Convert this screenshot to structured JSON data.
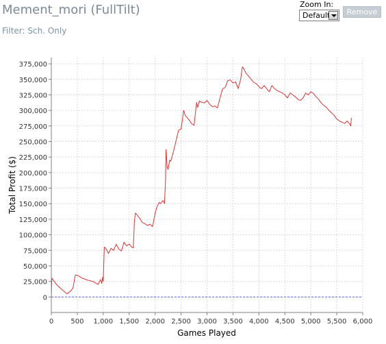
{
  "header": {
    "title": "Mement_mori (FullTilt)",
    "filter": "Filter: Sch. Only"
  },
  "controls": {
    "zoom_label": "Zoom In:",
    "zoom_value": "Default",
    "remove_label": "Remove"
  },
  "colors": {
    "line": "#e03030",
    "zero_line": "#6060e0",
    "grid": "#d9d9d9",
    "title": "#7a8a99",
    "filter": "#7a94a6"
  },
  "chart_data": {
    "type": "line",
    "title": "",
    "xlabel": "Games Played",
    "ylabel": "Total Profit ($)",
    "xlim": [
      0,
      6000
    ],
    "ylim": [
      -25000,
      385000
    ],
    "grid": true,
    "x_ticks": [
      0,
      500,
      1000,
      1500,
      2000,
      2500,
      3000,
      3500,
      4000,
      4500,
      5000,
      5500,
      6000
    ],
    "x_tick_labels": [
      "0",
      "500",
      "1,000",
      "1,500",
      "2,000",
      "2,500",
      "3,000",
      "3,500",
      "4,000",
      "4,500",
      "5,000",
      "5,500",
      "6,000"
    ],
    "y_ticks": [
      0,
      25000,
      50000,
      75000,
      100000,
      125000,
      150000,
      175000,
      200000,
      225000,
      250000,
      275000,
      300000,
      325000,
      350000,
      375000
    ],
    "y_tick_labels": [
      "0",
      "25,000",
      "50,000",
      "75,000",
      "100,000",
      "125,000",
      "150,000",
      "175,000",
      "200,000",
      "225,000",
      "250,000",
      "275,000",
      "300,000",
      "325,000",
      "350,000",
      "375,000"
    ],
    "baseline": 0,
    "series": [
      {
        "x": [
          0,
          10,
          30,
          100,
          200,
          300,
          380,
          420,
          440,
          460,
          500,
          600,
          700,
          800,
          900,
          950,
          970,
          990,
          1000,
          1020,
          1050,
          1100,
          1150,
          1200,
          1250,
          1300,
          1350,
          1400,
          1450,
          1500,
          1550,
          1580,
          1600,
          1620,
          1650,
          1700,
          1750,
          1800,
          1850,
          1900,
          1950,
          2000,
          2030,
          2050,
          2080,
          2100,
          2150,
          2180,
          2200,
          2210,
          2220,
          2230,
          2250,
          2280,
          2300,
          2350,
          2400,
          2450,
          2500,
          2550,
          2580,
          2600,
          2650,
          2700,
          2750,
          2800,
          2820,
          2850,
          2900,
          2950,
          3000,
          3050,
          3100,
          3150,
          3200,
          3250,
          3300,
          3350,
          3400,
          3450,
          3500,
          3550,
          3600,
          3650,
          3680,
          3700,
          3750,
          3800,
          3850,
          3900,
          3950,
          4000,
          4050,
          4100,
          4150,
          4200,
          4250,
          4300,
          4350,
          4400,
          4450,
          4500,
          4550,
          4600,
          4650,
          4700,
          4750,
          4800,
          4850,
          4900,
          4950,
          5000,
          5050,
          5100,
          5150,
          5200,
          5250,
          5300,
          5350,
          5400,
          5450,
          5500,
          5550,
          5600,
          5650,
          5700,
          5750,
          5770,
          5780
        ],
        "y": [
          0,
          30000,
          28000,
          20000,
          12000,
          5000,
          10000,
          15000,
          25000,
          35000,
          35000,
          30000,
          27000,
          25000,
          20000,
          28000,
          22000,
          32000,
          25000,
          80000,
          78000,
          70000,
          78000,
          75000,
          85000,
          77000,
          74000,
          88000,
          82000,
          85000,
          80000,
          79000,
          120000,
          135000,
          132000,
          127000,
          120000,
          118000,
          115000,
          117000,
          113000,
          135000,
          143000,
          148000,
          152000,
          150000,
          155000,
          150000,
          185000,
          237000,
          225000,
          210000,
          205000,
          220000,
          218000,
          233000,
          250000,
          268000,
          270000,
          300000,
          292000,
          290000,
          285000,
          279000,
          276000,
          313000,
          305000,
          315000,
          313000,
          312000,
          316000,
          310000,
          306000,
          307000,
          304000,
          320000,
          335000,
          337000,
          348000,
          349000,
          344000,
          346000,
          335000,
          351000,
          370000,
          368000,
          360000,
          355000,
          350000,
          345000,
          343000,
          338000,
          335000,
          340000,
          335000,
          330000,
          340000,
          335000,
          332000,
          330000,
          328000,
          325000,
          320000,
          328000,
          325000,
          322000,
          318000,
          316000,
          320000,
          328000,
          325000,
          330000,
          327000,
          322000,
          318000,
          312000,
          308000,
          305000,
          300000,
          296000,
          292000,
          286000,
          283000,
          281000,
          279000,
          283000,
          278000,
          275000,
          288000
        ]
      }
    ]
  }
}
